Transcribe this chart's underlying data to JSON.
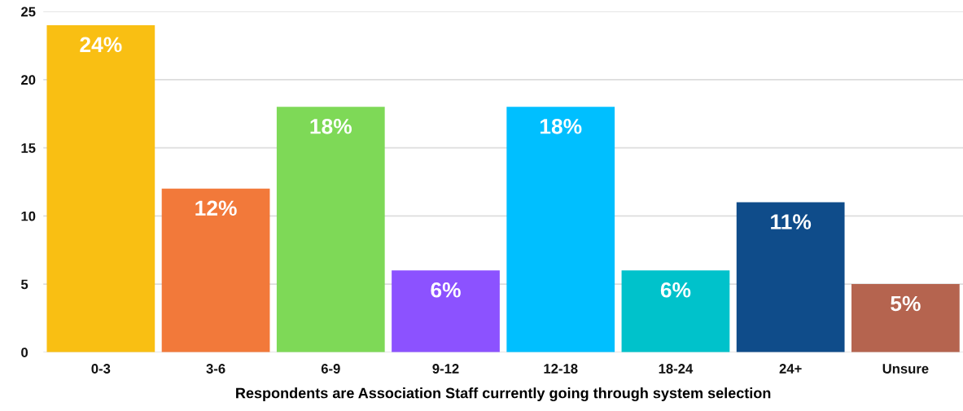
{
  "chart_data": {
    "type": "bar",
    "xlabel": "Respondents are Association Staff currently going through system selection",
    "categories": [
      "0-3",
      "3-6",
      "6-9",
      "9-12",
      "12-18",
      "18-24",
      "24+",
      "Unsure"
    ],
    "values": [
      24,
      12,
      18,
      6,
      18,
      6,
      11,
      5
    ],
    "value_labels": [
      "24%",
      "12%",
      "18%",
      "6%",
      "18%",
      "6%",
      "11%",
      "5%"
    ],
    "colors": [
      "#f9bf13",
      "#f2793a",
      "#7ed957",
      "#8c52ff",
      "#00bfff",
      "#00c2cb",
      "#0f4c8a",
      "#b5644f"
    ],
    "ylim": [
      0,
      25
    ],
    "yticks": [
      0,
      5,
      10,
      15,
      20,
      25
    ],
    "grid": "y",
    "legend": false
  }
}
